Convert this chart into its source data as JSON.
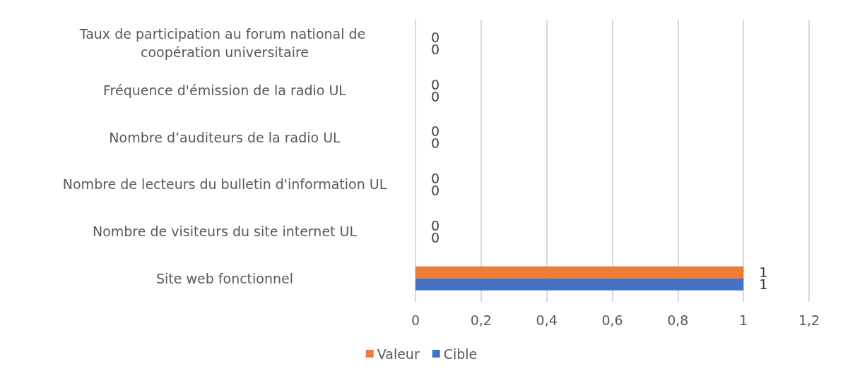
{
  "chart_data": {
    "type": "bar",
    "orientation": "horizontal",
    "categories": [
      "Taux de participation au forum national de coopération universitaire",
      "Fréquence d'émission de la radio UL",
      "Nombre d’auditeurs de la radio UL",
      "Nombre de lecteurs du bulletin d'information UL",
      "Nombre de visiteurs du site internet UL",
      "Site web fonctionnel"
    ],
    "series": [
      {
        "name": "Valeur",
        "color": "#ed7d31",
        "values": [
          0,
          0,
          0,
          0,
          0,
          1
        ]
      },
      {
        "name": "Cible",
        "color": "#4472c4",
        "values": [
          0,
          0,
          0,
          0,
          0,
          1
        ]
      }
    ],
    "xlim": [
      0,
      1.2
    ],
    "xticks": [
      0,
      {
        "value": 0.2,
        "label": "0,2"
      },
      {
        "value": 0.4,
        "label": "0,4"
      },
      {
        "value": 0.6,
        "label": "0,6"
      },
      {
        "value": 0.8,
        "label": "0,8"
      },
      1,
      {
        "value": 1.2,
        "label": "1,2"
      }
    ],
    "grid": "x",
    "legend": "bottom",
    "data_labels": true
  }
}
